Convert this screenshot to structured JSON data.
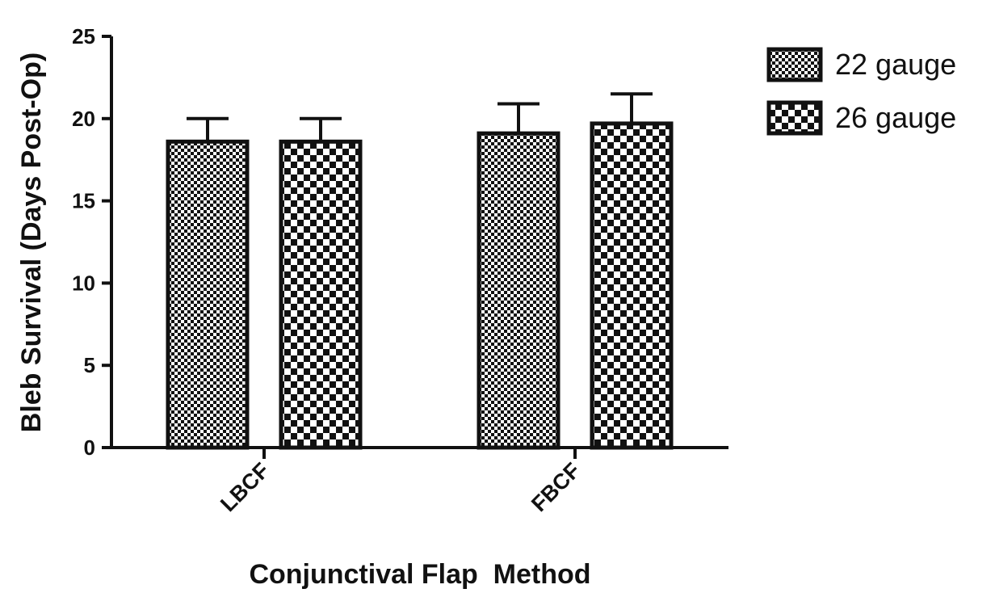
{
  "chart_data": {
    "type": "bar",
    "title": "",
    "xlabel": "Conjunctival Flap  Method",
    "ylabel": "Bleb Survival (Days Post-Op)",
    "categories": [
      "LBCF",
      "FBCF"
    ],
    "ylim": [
      0,
      25
    ],
    "yticks": [
      "0",
      "5",
      "10",
      "15",
      "20",
      "25"
    ],
    "grid": false,
    "legend_position": "top-right",
    "error_bars": "upper",
    "series": [
      {
        "name": "22 gauge",
        "pattern": "fine-checker",
        "values": [
          18.6,
          19.1
        ],
        "errors": [
          1.4,
          1.8
        ]
      },
      {
        "name": "26 gauge",
        "pattern": "coarse-checker",
        "values": [
          18.6,
          19.7
        ],
        "errors": [
          1.4,
          1.8
        ]
      }
    ],
    "colors": {
      "ink": "#111111",
      "background": "#ffffff"
    }
  }
}
